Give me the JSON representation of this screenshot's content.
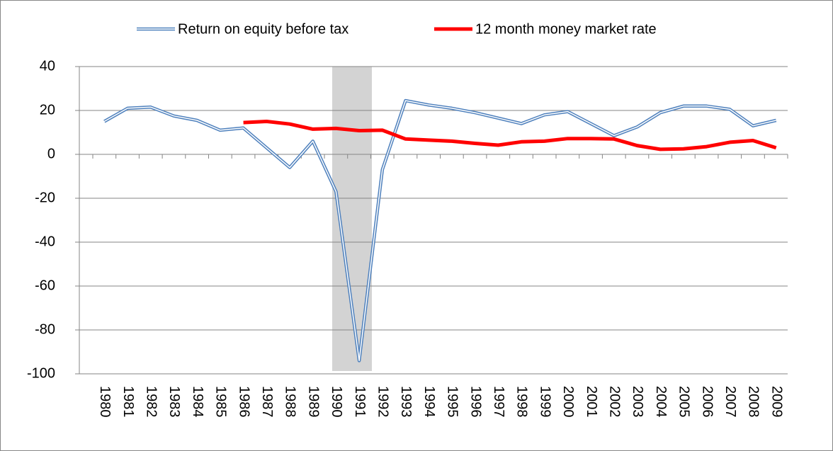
{
  "chart_data": {
    "type": "line",
    "categories": [
      "1980",
      "1981",
      "1982",
      "1983",
      "1984",
      "1985",
      "1986",
      "1987",
      "1988",
      "1989",
      "1990",
      "1991",
      "1992",
      "1993",
      "1994",
      "1995",
      "1996",
      "1997",
      "1998",
      "1999",
      "2000",
      "2001",
      "2002",
      "2003",
      "2004",
      "2005",
      "2006",
      "2007",
      "2008",
      "2009"
    ],
    "series": [
      {
        "name": "Return on equity before tax",
        "color": "#4f81bd",
        "values": [
          15,
          21,
          21.5,
          17.5,
          15.5,
          11,
          12,
          3,
          -6,
          6,
          -17,
          -94,
          -7,
          24.5,
          22.5,
          21,
          19,
          16.5,
          14,
          18,
          19.5,
          14,
          8.5,
          12.5,
          19,
          22,
          22,
          20.5,
          13,
          15.5
        ]
      },
      {
        "name": "12 month money market rate",
        "color": "#ff0000",
        "values": [
          null,
          null,
          null,
          null,
          null,
          null,
          14.5,
          15,
          13.8,
          11.5,
          11.8,
          10.8,
          11,
          7,
          6.5,
          6,
          5,
          4.2,
          5.7,
          6,
          7.2,
          7.2,
          7,
          4,
          2.3,
          2.5,
          3.5,
          5.5,
          6.3,
          3
        ]
      }
    ],
    "ylim": [
      -100,
      40
    ],
    "yticks": [
      -100,
      -80,
      -60,
      -40,
      -20,
      0,
      20,
      40
    ],
    "grid": true,
    "legend": "top"
  }
}
